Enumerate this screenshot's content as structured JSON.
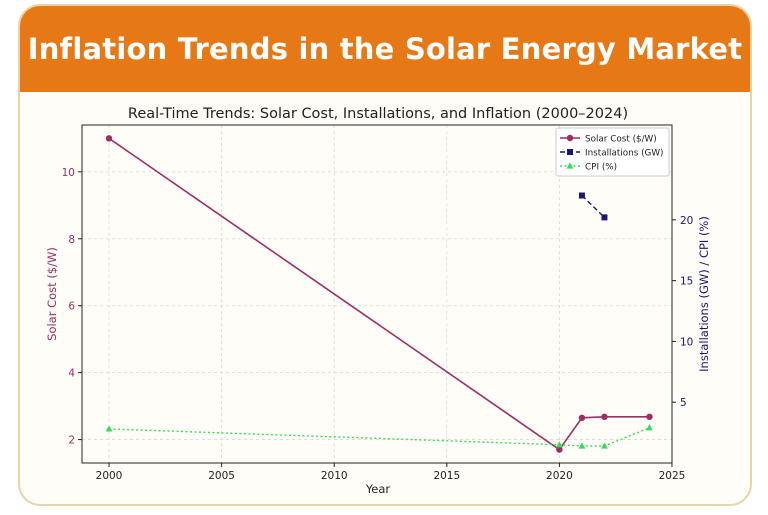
{
  "header": {
    "title": "Inflation Trends in the Solar Energy Market"
  },
  "chart_data": {
    "type": "line",
    "title": "Real-Time Trends: Solar Cost, Installations, and Inflation (2000–2024)",
    "xlabel": "Year",
    "ylabel_left": "Solar Cost ($/W)",
    "ylabel_right": "Installations (GW) / CPI (%)",
    "xlim": [
      1998.8,
      2025
    ],
    "ylim_left": [
      1.3,
      11.4
    ],
    "ylim_right": [
      0,
      27.8
    ],
    "x_ticks": [
      2000,
      2005,
      2010,
      2015,
      2020,
      2025
    ],
    "y_left_ticks": [
      2,
      4,
      6,
      8,
      10
    ],
    "y_right_ticks": [
      5,
      10,
      15,
      20
    ],
    "grid": true,
    "legend_position": "top-right",
    "colors": {
      "solar_cost": "#9c2f62",
      "installations": "#1c1670",
      "cpi": "#33dd55",
      "left_axis_text": "#9c2f62",
      "right_axis_text": "#1c1670"
    },
    "series": [
      {
        "name": "Solar Cost ($/W)",
        "axis": "left",
        "style": "solid",
        "marker": "circle",
        "color_key": "solar_cost",
        "x": [
          2000,
          2020,
          2021,
          2022,
          2024
        ],
        "y": [
          11.0,
          1.7,
          2.65,
          2.68,
          2.68
        ]
      },
      {
        "name": "Installations (GW)",
        "axis": "right",
        "style": "dashed",
        "marker": "square",
        "color_key": "installations",
        "x": [
          2021,
          2022
        ],
        "y": [
          22.0,
          20.2
        ]
      },
      {
        "name": "CPI (%)",
        "axis": "right",
        "style": "dotted",
        "marker": "triangle",
        "color_key": "cpi",
        "x": [
          2000,
          2020,
          2021,
          2022,
          2024
        ],
        "y": [
          2.8,
          1.5,
          1.4,
          1.4,
          2.9
        ]
      }
    ]
  }
}
